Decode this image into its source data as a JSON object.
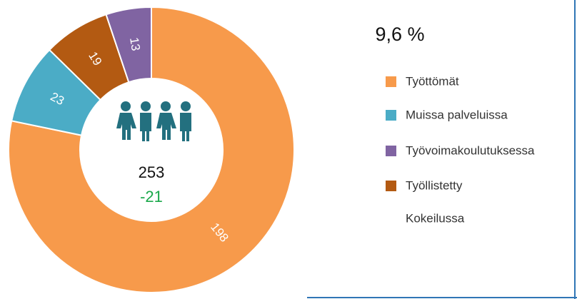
{
  "chart_data": {
    "type": "donut",
    "rate": "9,6 %",
    "total": 253,
    "change": -21,
    "slices": [
      {
        "name": "Työttömät",
        "value": 198,
        "color": "#f79a4b"
      },
      {
        "name": "Muissa palveluissa",
        "value": 23,
        "color": "#4bacc6"
      },
      {
        "name": "Työllistetty",
        "value": 19,
        "color": "#b35a12"
      },
      {
        "name": "Työvoimakoulutuksessa",
        "value": 13,
        "color": "#8064a2"
      }
    ],
    "legend": [
      "Työttömät",
      "Muissa palveluissa",
      "Työvoimakoulutuksessa",
      "Työllistetty",
      "Kokeilussa"
    ]
  }
}
